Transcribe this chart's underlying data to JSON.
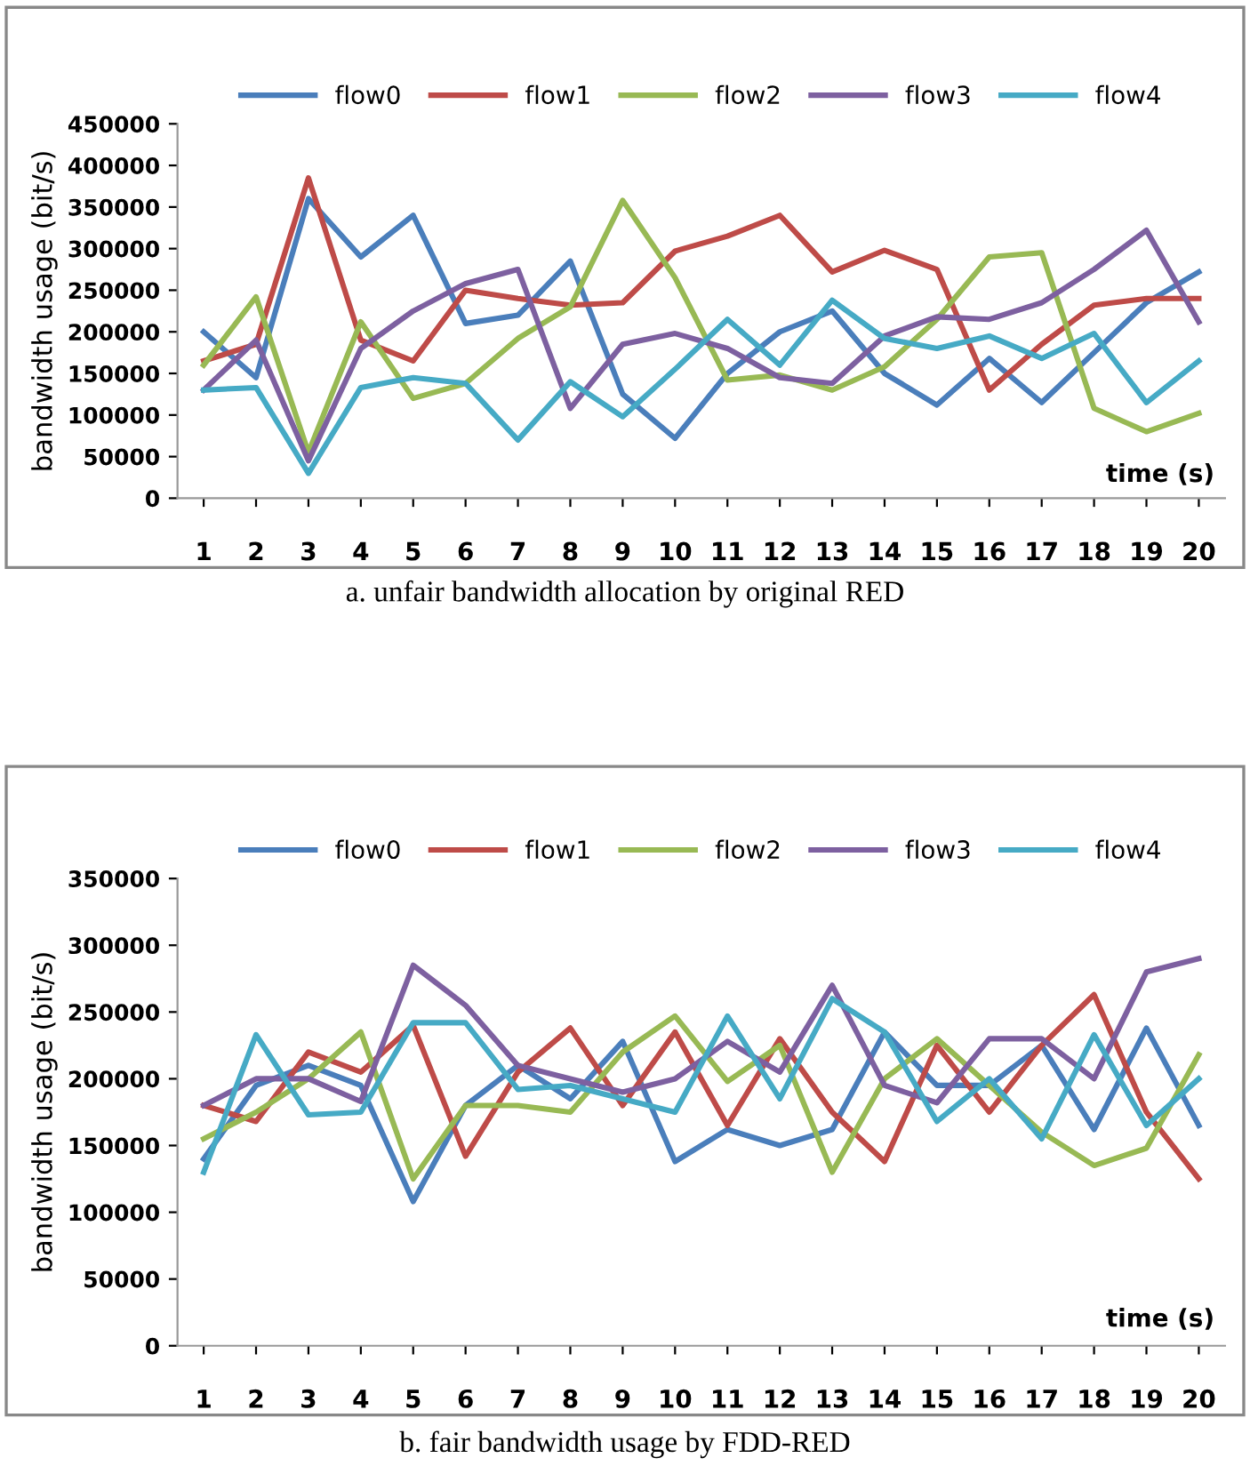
{
  "chart_data": [
    {
      "type": "line",
      "ylabel": "bandwidth usage (bit/s)",
      "xlabel": "time (s)",
      "legend": "top",
      "grid": false,
      "marker": "none",
      "line_style": "solid",
      "categories": [
        "1",
        "2",
        "3",
        "4",
        "5",
        "6",
        "7",
        "8",
        "9",
        "10",
        "11",
        "12",
        "13",
        "14",
        "15",
        "16",
        "17",
        "18",
        "19",
        "20"
      ],
      "ylim": [
        0,
        450000
      ],
      "yticks": [
        0,
        50000,
        100000,
        150000,
        200000,
        250000,
        300000,
        350000,
        400000,
        450000
      ],
      "annotations": [
        "a. unfair bandwidth allocation by original RED"
      ],
      "series": [
        {
          "name": "flow0",
          "color": "#4a7ebb",
          "values": [
            200000,
            145000,
            360000,
            290000,
            340000,
            210000,
            220000,
            285000,
            125000,
            72000,
            150000,
            200000,
            225000,
            150000,
            112000,
            168000,
            115000,
            175000,
            235000,
            272000
          ]
        },
        {
          "name": "flow1",
          "color": "#be4b48",
          "values": [
            165000,
            185000,
            385000,
            190000,
            165000,
            250000,
            240000,
            232000,
            235000,
            297000,
            315000,
            340000,
            272000,
            298000,
            275000,
            130000,
            185000,
            232000,
            240000,
            240000
          ]
        },
        {
          "name": "flow2",
          "color": "#98b954",
          "values": [
            160000,
            242000,
            55000,
            212000,
            120000,
            138000,
            192000,
            230000,
            358000,
            265000,
            142000,
            148000,
            130000,
            158000,
            215000,
            290000,
            295000,
            108000,
            80000,
            102000
          ]
        },
        {
          "name": "flow3",
          "color": "#7d60a0",
          "values": [
            130000,
            190000,
            45000,
            180000,
            225000,
            258000,
            275000,
            108000,
            185000,
            198000,
            180000,
            145000,
            138000,
            195000,
            218000,
            215000,
            235000,
            275000,
            322000,
            212000
          ]
        },
        {
          "name": "flow4",
          "color": "#46aac5",
          "values": [
            130000,
            133000,
            30000,
            133000,
            145000,
            138000,
            70000,
            140000,
            98000,
            155000,
            215000,
            160000,
            238000,
            192000,
            180000,
            195000,
            168000,
            198000,
            115000,
            165000
          ]
        }
      ]
    },
    {
      "type": "line",
      "ylabel": "bandwidth usage (bit/s)",
      "xlabel": "time (s)",
      "legend": "top",
      "grid": false,
      "marker": "none",
      "line_style": "solid",
      "categories": [
        "1",
        "2",
        "3",
        "4",
        "5",
        "6",
        "7",
        "8",
        "9",
        "10",
        "11",
        "12",
        "13",
        "14",
        "15",
        "16",
        "17",
        "18",
        "19",
        "20"
      ],
      "ylim": [
        0,
        350000
      ],
      "yticks": [
        0,
        50000,
        100000,
        150000,
        200000,
        250000,
        300000,
        350000
      ],
      "annotations": [
        "b. fair bandwidth usage by FDD-RED"
      ],
      "series": [
        {
          "name": "flow0",
          "color": "#4a7ebb",
          "values": [
            140000,
            195000,
            210000,
            195000,
            108000,
            180000,
            210000,
            185000,
            228000,
            138000,
            162000,
            150000,
            162000,
            235000,
            195000,
            195000,
            225000,
            162000,
            238000,
            165000
          ]
        },
        {
          "name": "flow1",
          "color": "#be4b48",
          "values": [
            180000,
            168000,
            220000,
            205000,
            240000,
            142000,
            205000,
            238000,
            180000,
            235000,
            165000,
            230000,
            175000,
            138000,
            225000,
            175000,
            225000,
            263000,
            175000,
            125000
          ]
        },
        {
          "name": "flow2",
          "color": "#98b954",
          "values": [
            155000,
            175000,
            200000,
            235000,
            125000,
            180000,
            180000,
            175000,
            220000,
            247000,
            198000,
            225000,
            130000,
            200000,
            230000,
            195000,
            160000,
            135000,
            148000,
            218000
          ]
        },
        {
          "name": "flow3",
          "color": "#7d60a0",
          "values": [
            180000,
            200000,
            200000,
            183000,
            285000,
            255000,
            210000,
            200000,
            190000,
            200000,
            228000,
            205000,
            270000,
            195000,
            182000,
            230000,
            230000,
            200000,
            280000,
            290000
          ]
        },
        {
          "name": "flow4",
          "color": "#46aac5",
          "values": [
            130000,
            233000,
            173000,
            175000,
            242000,
            242000,
            192000,
            195000,
            185000,
            175000,
            247000,
            185000,
            260000,
            235000,
            168000,
            200000,
            155000,
            233000,
            165000,
            200000
          ]
        }
      ]
    }
  ]
}
